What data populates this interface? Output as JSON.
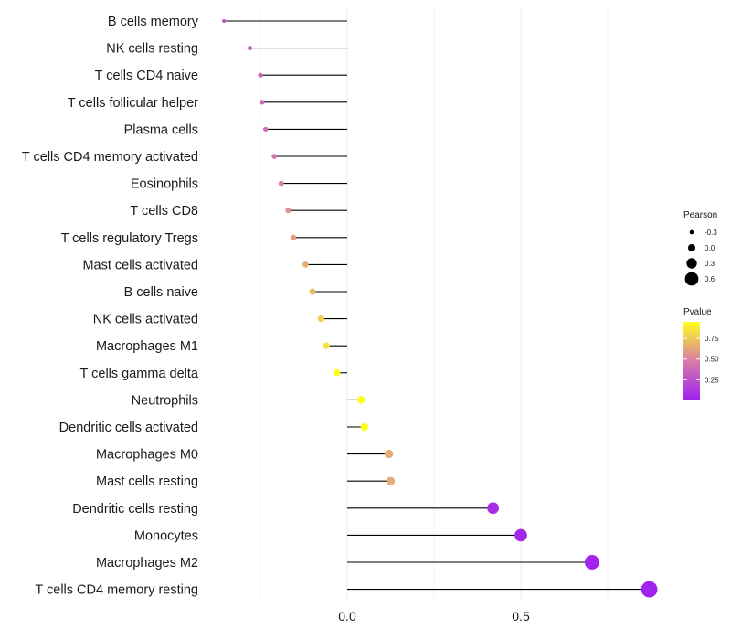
{
  "chart_data": {
    "type": "lollipop",
    "title": "",
    "xlabel": "",
    "ylabel": "",
    "xlim": [
      -0.42,
      0.88
    ],
    "x_ticks": [
      0.0,
      0.5
    ],
    "x_tick_labels": [
      "0.0",
      "0.5"
    ],
    "grid": true,
    "categories": [
      "B cells memory",
      "NK cells resting",
      "T cells CD4 naive",
      "T cells follicular helper",
      "Plasma cells",
      "T cells CD4 memory activated",
      "Eosinophils",
      "T cells CD8",
      "T cells regulatory  Tregs",
      "Mast cells activated",
      "B cells naive",
      "NK cells activated",
      "Macrophages M1",
      "T cells gamma delta",
      "Neutrophils",
      "Dendritic cells activated",
      "Macrophages M0",
      "Mast cells resting",
      "Dendritic cells resting",
      "Monocytes",
      "Macrophages M2",
      "T cells CD4 memory resting"
    ],
    "pearson": [
      -0.355,
      -0.28,
      -0.25,
      -0.245,
      -0.235,
      -0.21,
      -0.19,
      -0.17,
      -0.155,
      -0.12,
      -0.1,
      -0.075,
      -0.06,
      -0.03,
      0.04,
      0.05,
      0.12,
      0.125,
      0.42,
      0.5,
      0.705,
      0.87
    ],
    "pvalue": [
      0.25,
      0.3,
      0.35,
      0.38,
      0.4,
      0.45,
      0.5,
      0.55,
      0.6,
      0.65,
      0.7,
      0.78,
      0.85,
      0.95,
      0.95,
      0.95,
      0.65,
      0.65,
      0.05,
      0.03,
      0.02,
      0.01
    ],
    "legend": {
      "position": "right",
      "size_title": "Pearson",
      "size_breaks": [
        -0.3,
        0.0,
        0.3,
        0.6
      ],
      "size_labels": [
        "-0.3",
        "0.0",
        "0.3",
        "0.6"
      ],
      "color_title": "Pvalue",
      "color_breaks": [
        0.25,
        0.5,
        0.75
      ],
      "color_labels": [
        "0.25",
        "0.50",
        "0.75"
      ],
      "color_range": [
        0.0,
        0.95
      ]
    }
  },
  "colors": {
    "low": "#a020f0",
    "mid": "#d87ca8",
    "high": "#ffff1e",
    "stem": "#000000",
    "grid": "#ebebeb",
    "text": "#1a1a1a"
  }
}
